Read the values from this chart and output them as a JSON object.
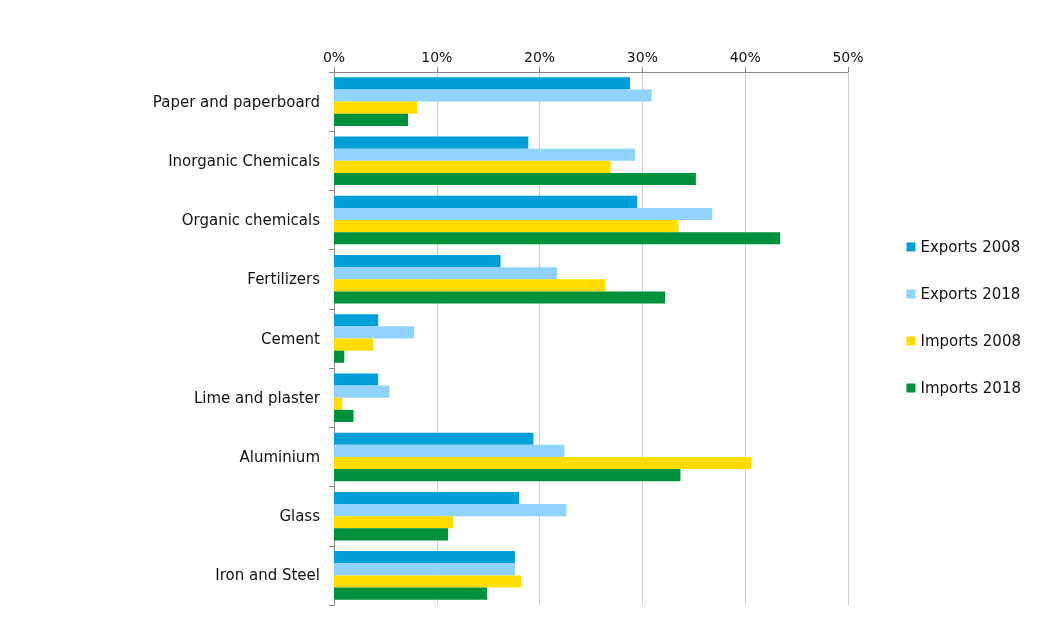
{
  "chart_data": {
    "type": "bar",
    "orientation": "horizontal",
    "categories": [
      "Paper and paperboard",
      "Inorganic Chemicals",
      "Organic chemicals",
      "Fertilizers",
      "Cement",
      "Lime and plaster",
      "Aluminium",
      "Glass",
      "Iron and Steel"
    ],
    "series": [
      {
        "name": "Exports 2008",
        "color": "#009fda",
        "values": [
          28.8,
          18.9,
          29.5,
          16.2,
          4.3,
          4.3,
          19.4,
          18.0,
          17.6
        ]
      },
      {
        "name": "Exports 2018",
        "color": "#8fd3fe",
        "values": [
          30.9,
          29.3,
          36.8,
          21.7,
          7.8,
          5.4,
          22.4,
          22.6,
          17.6
        ]
      },
      {
        "name": "Imports 2008",
        "color": "#ffdd00",
        "values": [
          8.1,
          26.9,
          33.5,
          26.4,
          3.8,
          0.8,
          40.6,
          11.6,
          18.2
        ]
      },
      {
        "name": "Imports 2018",
        "color": "#00923a",
        "values": [
          7.2,
          35.2,
          43.4,
          32.2,
          1.0,
          1.9,
          33.7,
          11.1,
          14.9
        ]
      }
    ],
    "xlim": [
      0,
      50
    ],
    "xticks": [
      {
        "value": 0,
        "label": "0%"
      },
      {
        "value": 10,
        "label": "10%"
      },
      {
        "value": 20,
        "label": "20%"
      },
      {
        "value": 30,
        "label": "30%"
      },
      {
        "value": 40,
        "label": "40%"
      },
      {
        "value": 50,
        "label": "50%"
      }
    ],
    "grid": "x",
    "legend": "right"
  }
}
